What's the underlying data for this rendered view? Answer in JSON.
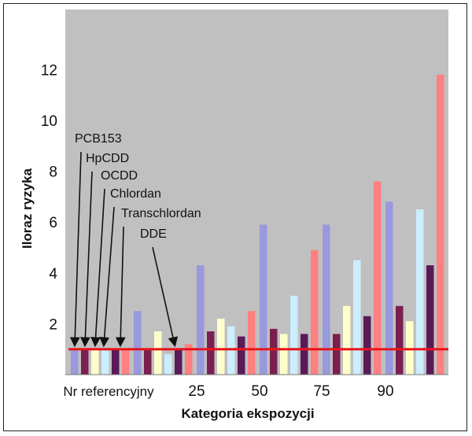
{
  "chart_data": {
    "type": "bar",
    "xlabel": "Kategoria ekspozycji",
    "ylabel": "Iloraz ryzyka",
    "categories": [
      "Nr referencyjny",
      "25",
      "50",
      "75",
      "90",
      ""
    ],
    "ylim": [
      0,
      14
    ],
    "yticks": [
      "2",
      "4",
      "6",
      "8",
      "10",
      "12"
    ],
    "grid": false,
    "reference_line": 1,
    "series": [
      {
        "name": "PCB153",
        "values": [
          1,
          2.5,
          4.3,
          5.9,
          5.9,
          6.8
        ]
      },
      {
        "name": "HpCDD",
        "values": [
          1,
          1.0,
          1.7,
          1.8,
          1.6,
          2.7
        ]
      },
      {
        "name": "OCDD",
        "values": [
          1,
          1.7,
          2.2,
          1.6,
          2.7,
          2.1
        ]
      },
      {
        "name": "Chlordan",
        "values": [
          1,
          0.8,
          1.9,
          3.1,
          4.5,
          6.5
        ]
      },
      {
        "name": "Transchlordan",
        "values": [
          1,
          1.0,
          1.5,
          1.6,
          2.3,
          4.3
        ]
      },
      {
        "name": "DDE",
        "values": [
          1,
          1.2,
          2.5,
          4.9,
          7.6,
          11.8
        ]
      }
    ],
    "colors": {
      "PCB153": "#9999dd",
      "HpCDD": "#7a1f4f",
      "OCDD": "#ffffcc",
      "Chlordan": "#cceeff",
      "Transchlordan": "#5a1a58",
      "DDE": "#ff8080",
      "reference_line": "#e8141a",
      "plot_bg": "#c0c0c0"
    }
  }
}
